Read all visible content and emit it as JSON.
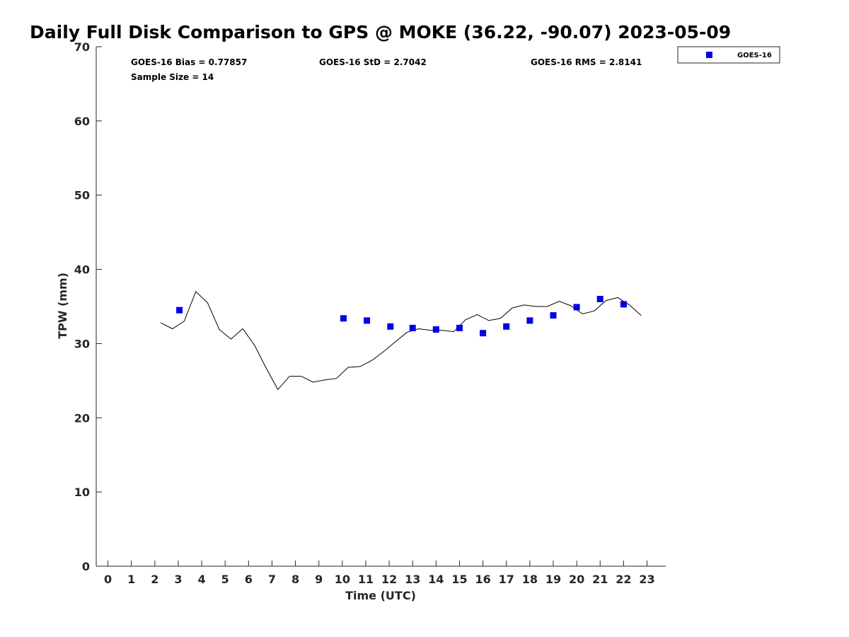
{
  "chart_data": {
    "type": "scatter",
    "title": "Daily Full Disk Comparison to GPS @ MOKE (36.22, -90.07) 2023-05-09",
    "xlabel": "Time (UTC)",
    "ylabel": "TPW (mm)",
    "xlim": [
      -0.5,
      23.8
    ],
    "ylim": [
      0,
      70
    ],
    "x_ticks": [
      "0",
      "1",
      "2",
      "3",
      "4",
      "5",
      "6",
      "7",
      "8",
      "9",
      "10",
      "11",
      "12",
      "13",
      "14",
      "15",
      "16",
      "17",
      "18",
      "19",
      "20",
      "21",
      "22",
      "23"
    ],
    "y_ticks": [
      "0",
      "10",
      "20",
      "30",
      "40",
      "50",
      "60",
      "70"
    ],
    "grid": false,
    "legend_position": "top-right",
    "stats": {
      "bias": "GOES-16 Bias = 0.77857",
      "std": "GOES-16 StD = 2.7042",
      "rms": "GOES-16 RMS = 2.8141",
      "sample": "Sample Size = 14"
    },
    "series": [
      {
        "name": "GOES-16",
        "kind": "marker",
        "color": "#0000e6",
        "x": [
          3.05,
          10.05,
          11.05,
          12.05,
          13.0,
          14.0,
          15.0,
          16.0,
          17.0,
          18.0,
          19.0,
          20.0,
          21.0,
          22.0
        ],
        "y": [
          34.5,
          33.4,
          33.1,
          32.3,
          32.1,
          31.9,
          32.1,
          31.4,
          32.3,
          33.1,
          33.8,
          34.9,
          36.0,
          35.3
        ]
      },
      {
        "kind": "line",
        "color": "#000000",
        "x": [
          2.25,
          2.75,
          3.25,
          3.75,
          4.25,
          4.75,
          5.25,
          5.75,
          6.25,
          6.75,
          7.25,
          7.75,
          8.25,
          8.75,
          9.25,
          9.75,
          10.25,
          10.75,
          11.25,
          11.75,
          12.25,
          12.75,
          13.25,
          13.75,
          14.25,
          14.75,
          15.25,
          15.75,
          16.25,
          16.75,
          17.25,
          17.75,
          18.25,
          18.75,
          19.25,
          19.75,
          20.25,
          20.75,
          21.25,
          21.75,
          22.25,
          22.75
        ],
        "y": [
          32.8,
          32.0,
          33.0,
          37.0,
          35.5,
          31.9,
          30.6,
          32.0,
          29.8,
          26.7,
          23.8,
          25.6,
          25.6,
          24.8,
          25.1,
          25.3,
          26.8,
          26.9,
          27.7,
          28.9,
          30.2,
          31.5,
          32.0,
          31.8,
          31.8,
          31.6,
          33.2,
          33.9,
          33.1,
          33.4,
          34.8,
          35.2,
          35.0,
          35.0,
          35.7,
          35.1,
          34.0,
          34.4,
          35.8,
          36.2,
          35.2,
          33.8
        ]
      }
    ]
  }
}
